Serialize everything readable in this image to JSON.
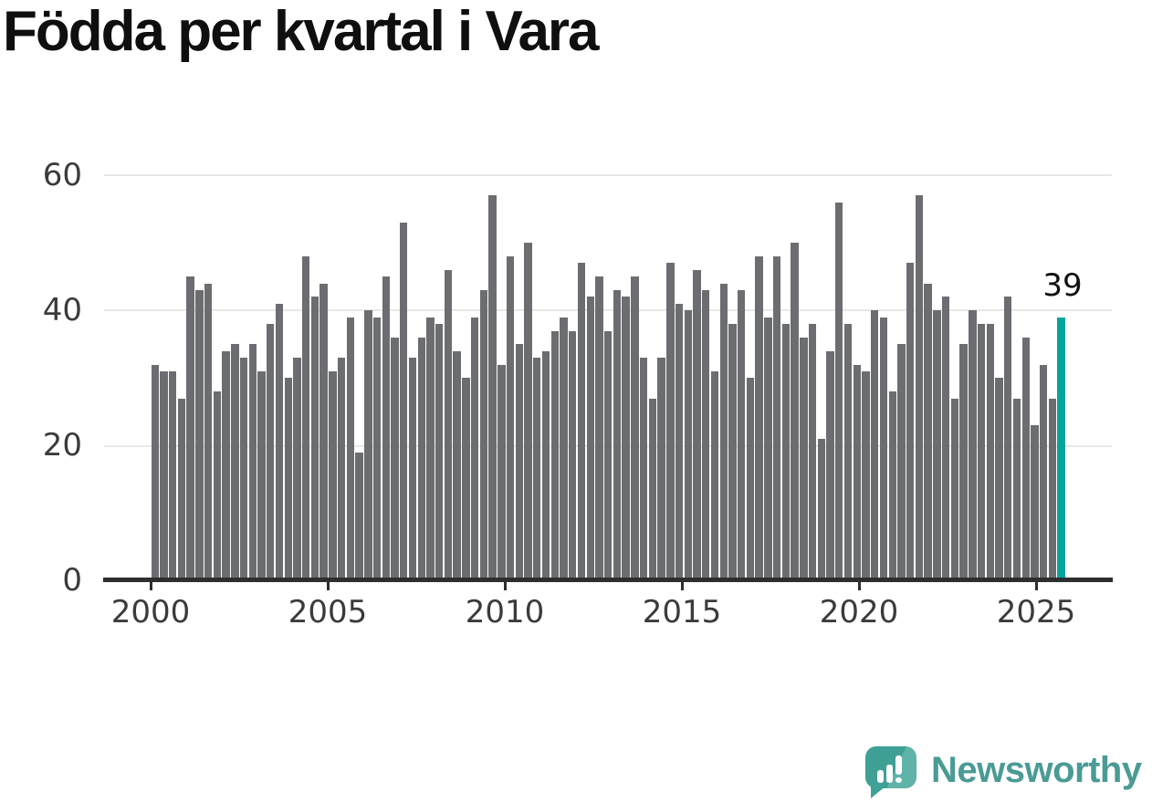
{
  "title": "Födda per kvartal i Vara",
  "annotation": {
    "label": "39"
  },
  "chart_data": {
    "type": "bar",
    "title": "Födda per kvartal i Vara",
    "x_start": "2000 Q1",
    "x_end": "2025 Q3",
    "frequency": "quarterly",
    "categories_note": "103 consecutive quarters from 2000 Q1 to 2025 Q3",
    "values": [
      32,
      31,
      31,
      27,
      45,
      43,
      44,
      28,
      34,
      35,
      33,
      35,
      31,
      38,
      41,
      30,
      33,
      48,
      42,
      44,
      31,
      33,
      39,
      19,
      40,
      39,
      45,
      36,
      53,
      33,
      36,
      39,
      38,
      46,
      34,
      30,
      39,
      43,
      57,
      32,
      48,
      35,
      50,
      33,
      34,
      37,
      39,
      37,
      47,
      42,
      45,
      37,
      43,
      42,
      45,
      33,
      27,
      33,
      47,
      41,
      40,
      46,
      43,
      31,
      44,
      38,
      43,
      30,
      48,
      39,
      48,
      38,
      50,
      36,
      38,
      21,
      34,
      56,
      38,
      32,
      31,
      40,
      39,
      28,
      35,
      47,
      57,
      44,
      40,
      42,
      27,
      35,
      40,
      38,
      38,
      30,
      42,
      27,
      36,
      23,
      32,
      27,
      39
    ],
    "highlight_index": 102,
    "highlight_value": 39,
    "highlight_quarter": "2025 Q3",
    "x_tick_labels": [
      "2000",
      "2005",
      "2010",
      "2015",
      "2020",
      "2025"
    ],
    "y_tick_labels": [
      "0",
      "20",
      "40",
      "60"
    ],
    "ylim": [
      0,
      62
    ],
    "grid": "horizontal",
    "legend": "none",
    "colors": {
      "bar": "#6C6D71",
      "highlight": "#00A69C",
      "gridline": "#E8E8E6",
      "axis": "#2E2E2E",
      "tick_text": "#3B3B3B",
      "title_text": "#0F0F0F"
    }
  },
  "logo": {
    "brand": "Newsworthy",
    "wordmark_color": "#4A9B95",
    "bubble_color": "#3FA096"
  }
}
